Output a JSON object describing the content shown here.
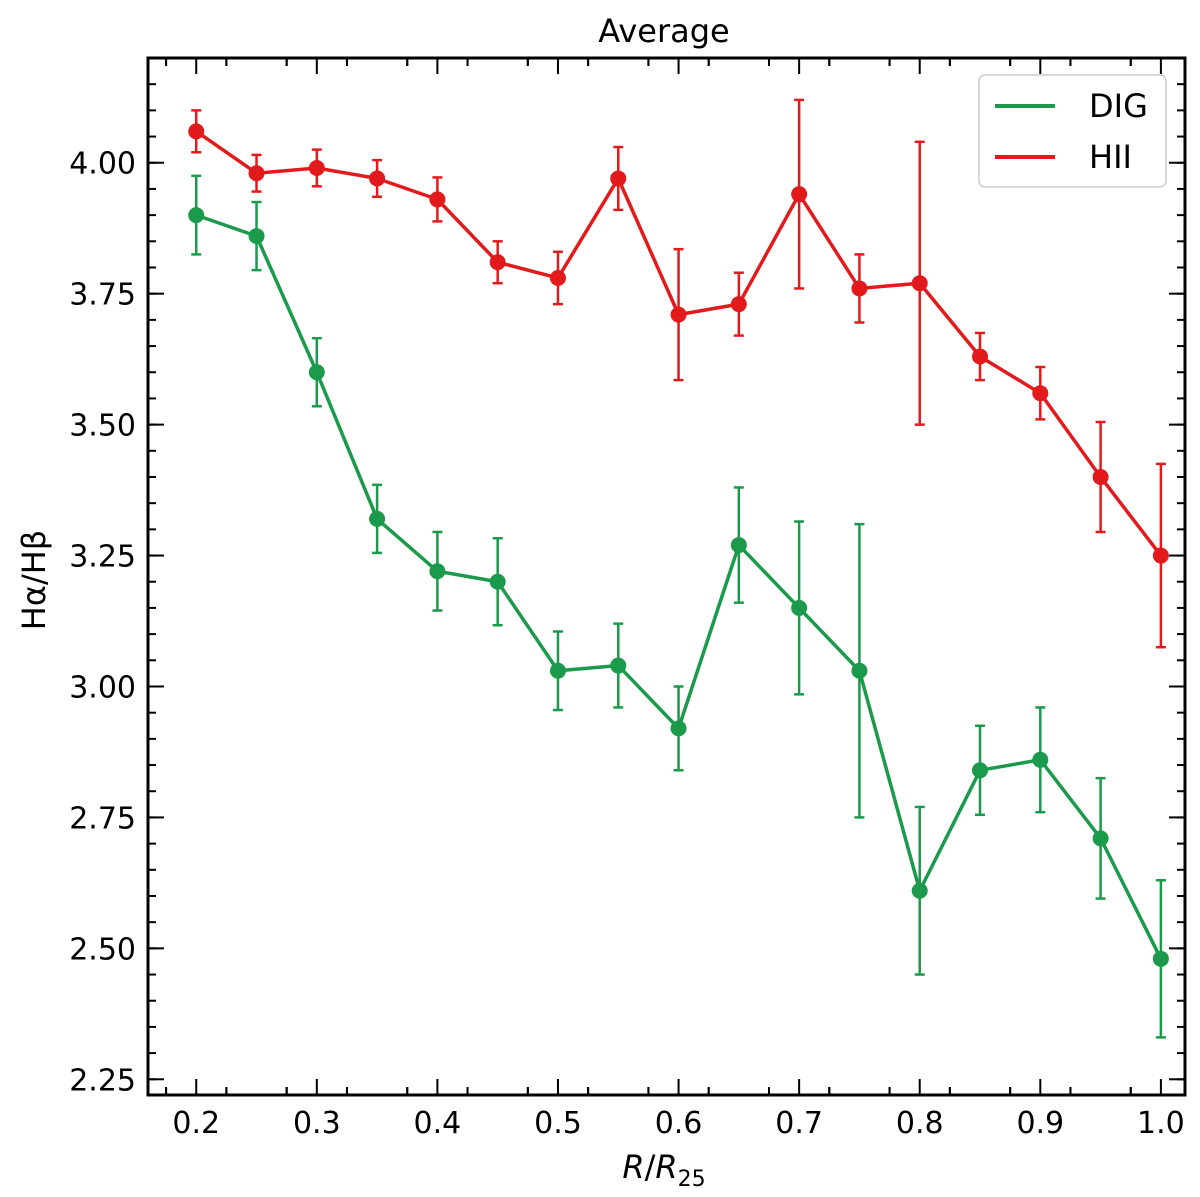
{
  "chart_data": {
    "type": "line",
    "title": "Average",
    "xlabel": "R/R25",
    "ylabel": "Hα/Hβ",
    "xlim": [
      0.16,
      1.02
    ],
    "ylim": [
      2.22,
      4.2
    ],
    "xticks": [
      "0.2",
      "0.3",
      "0.4",
      "0.5",
      "0.6",
      "0.7",
      "0.8",
      "0.9",
      "1.0"
    ],
    "yticks": [
      "2.25",
      "2.50",
      "2.75",
      "3.00",
      "3.25",
      "3.50",
      "3.75",
      "4.00"
    ],
    "grid": false,
    "legend_position": "top-right",
    "x": [
      0.2,
      0.25,
      0.3,
      0.35,
      0.4,
      0.45,
      0.5,
      0.55,
      0.6,
      0.65,
      0.7,
      0.75,
      0.8,
      0.85,
      0.9,
      0.95,
      1.0
    ],
    "series": [
      {
        "name": "DIG",
        "color": "#1a9a4a",
        "values": [
          3.9,
          3.86,
          3.6,
          3.32,
          3.22,
          3.2,
          3.03,
          3.04,
          2.92,
          3.27,
          3.15,
          3.03,
          2.61,
          2.84,
          2.86,
          2.71,
          2.48
        ],
        "yerr": [
          0.075,
          0.065,
          0.065,
          0.065,
          0.075,
          0.083,
          0.075,
          0.08,
          0.08,
          0.11,
          0.165,
          0.28,
          0.16,
          0.085,
          0.1,
          0.115,
          0.15
        ]
      },
      {
        "name": "HII",
        "color": "#e31a1c",
        "values": [
          4.06,
          3.98,
          3.99,
          3.97,
          3.93,
          3.81,
          3.78,
          3.97,
          3.71,
          3.73,
          3.94,
          3.76,
          3.77,
          3.63,
          3.56,
          3.4,
          3.25
        ],
        "yerr": [
          0.04,
          0.035,
          0.035,
          0.035,
          0.042,
          0.04,
          0.05,
          0.06,
          0.125,
          0.06,
          0.18,
          0.065,
          0.27,
          0.045,
          0.05,
          0.105,
          0.175
        ]
      }
    ]
  }
}
